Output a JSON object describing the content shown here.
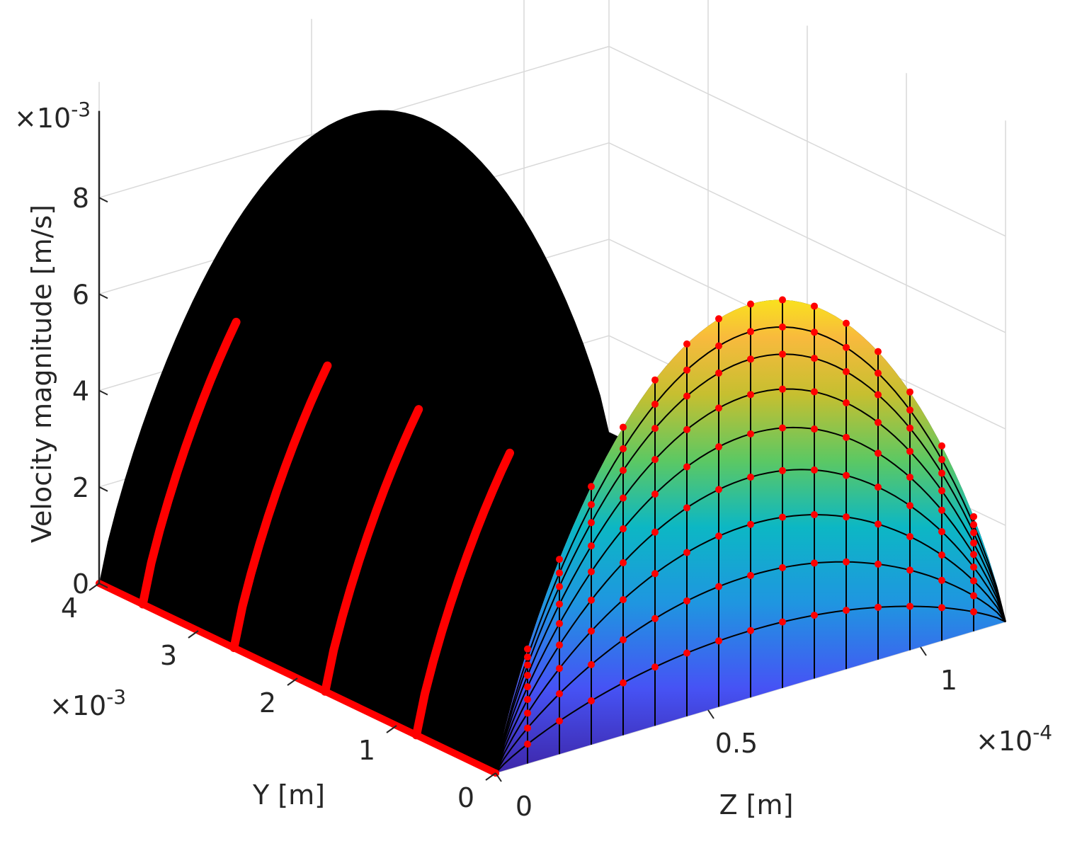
{
  "chart_data": {
    "type": "surface3d",
    "title": "",
    "xlabel": "Z [m]",
    "ylabel": "Y [m]",
    "zlabel": "Velocity magnitude [m/s]",
    "x_multiplier": "×10-4",
    "y_multiplier": "×10-3",
    "z_multiplier": "×10-3",
    "xlim": [
      0,
      1.2
    ],
    "ylim": [
      0,
      4
    ],
    "zlim": [
      0,
      8.5
    ],
    "x_ticks": [
      "0",
      "0.5",
      "1"
    ],
    "x_tick_values": [
      0,
      0.5,
      1
    ],
    "y_ticks": [
      "0",
      "1",
      "2",
      "3",
      "4"
    ],
    "y_tick_values": [
      0,
      1,
      2,
      3,
      4
    ],
    "z_ticks": [
      "0",
      "2",
      "4",
      "6",
      "8"
    ],
    "z_tick_values": [
      0,
      2,
      4,
      6,
      8
    ],
    "grid": true,
    "colormap": "parula",
    "marker_color": "#ff0000",
    "edge_color": "#000000",
    "series": [
      {
        "z_positions": [
          0,
          0.075,
          0.15,
          0.225,
          0.3,
          0.375,
          0.45,
          0.525,
          0.6,
          0.675,
          0.75,
          0.825,
          0.9,
          0.975,
          1.05,
          1.125
        ],
        "profile_section_velocity": [
          1.4,
          2.7,
          3.9,
          4.9,
          5.8,
          6.5,
          7.0,
          7.4,
          7.5
        ]
      }
    ]
  }
}
